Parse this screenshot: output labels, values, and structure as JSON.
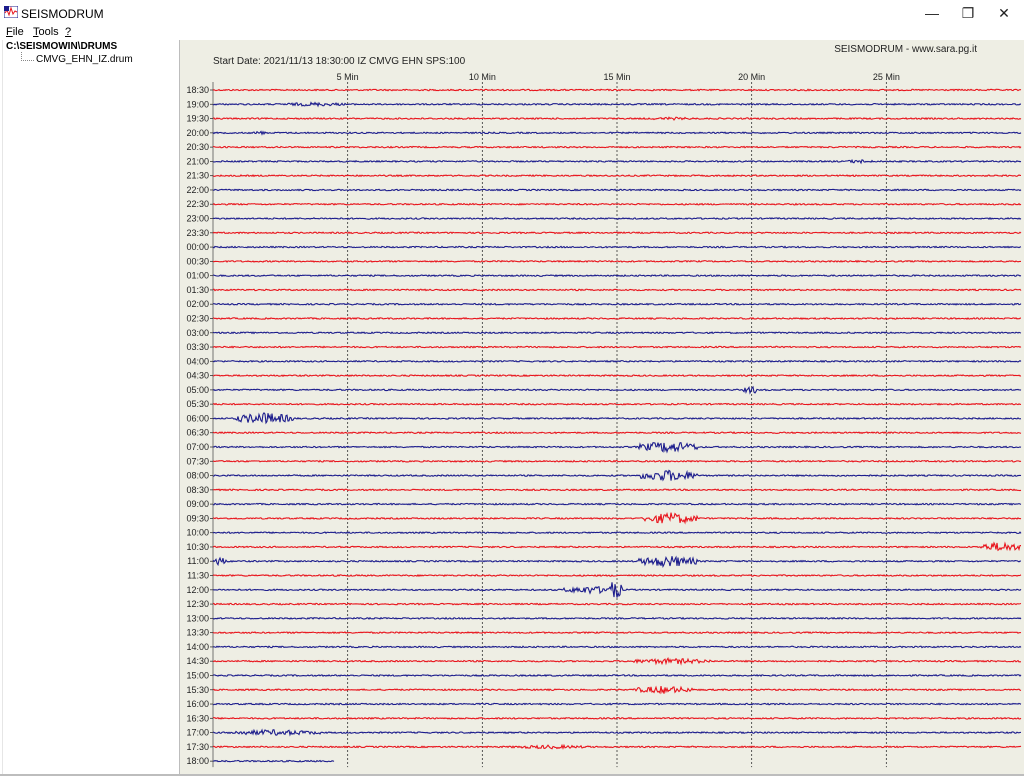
{
  "window": {
    "title": "SEISMODRUM",
    "minimize_glyph": "—",
    "restore_glyph": "❐",
    "close_glyph": "✕"
  },
  "menu": {
    "items": [
      {
        "label": "File"
      },
      {
        "label": "Tools"
      },
      {
        "label": "?"
      }
    ]
  },
  "tree": {
    "root": "C:\\SEISMOWIN\\DRUMS",
    "file": "CMVG_EHN_IZ.drum"
  },
  "drum": {
    "header_right": "SEISMODRUM - www.sara.pg.it",
    "start_info": "Start Date: 2021/11/13 18:30:00 IZ CMVG EHN SPS:100",
    "colors": {
      "red": "#e8141c",
      "blue": "#1c1c8c"
    },
    "minute_ticks": [
      {
        "minute": 5,
        "label": "5 Min"
      },
      {
        "minute": 10,
        "label": "10 Min"
      },
      {
        "minute": 15,
        "label": "15 Min"
      },
      {
        "minute": 20,
        "label": "20 Min"
      },
      {
        "minute": 25,
        "label": "25 Min"
      }
    ],
    "row_labels": [
      "18:30",
      "19:00",
      "19:30",
      "20:00",
      "20:30",
      "21:00",
      "21:30",
      "22:00",
      "22:30",
      "23:00",
      "23:30",
      "00:00",
      "00:30",
      "01:00",
      "01:30",
      "02:00",
      "02:30",
      "03:00",
      "03:30",
      "04:00",
      "04:30",
      "05:00",
      "05:30",
      "06:00",
      "06:30",
      "07:00",
      "07:30",
      "08:00",
      "08:30",
      "09:00",
      "09:30",
      "10:00",
      "10:30",
      "11:00",
      "11:30",
      "12:00",
      "12:30",
      "13:00",
      "13:30",
      "14:00",
      "14:30",
      "15:00",
      "15:30",
      "16:00",
      "16:30",
      "17:00",
      "17:30",
      "18:00"
    ],
    "events": [
      {
        "row": 1,
        "start": 2.5,
        "end": 5.0,
        "amp": 2
      },
      {
        "row": 2,
        "start": 16.0,
        "end": 18.0,
        "amp": 1.5
      },
      {
        "row": 3,
        "start": 1.5,
        "end": 2.0,
        "amp": 2
      },
      {
        "row": 5,
        "start": 23.5,
        "end": 24.5,
        "amp": 2
      },
      {
        "row": 21,
        "start": 19.7,
        "end": 20.3,
        "amp": 4
      },
      {
        "row": 23,
        "start": 0.8,
        "end": 3.0,
        "amp": 6
      },
      {
        "row": 25,
        "start": 15.8,
        "end": 18.0,
        "amp": 6
      },
      {
        "row": 27,
        "start": 15.8,
        "end": 18.0,
        "amp": 6
      },
      {
        "row": 30,
        "start": 16.0,
        "end": 18.0,
        "amp": 6
      },
      {
        "row": 32,
        "start": 28.5,
        "end": 30.0,
        "amp": 5
      },
      {
        "row": 33,
        "start": 0.0,
        "end": 0.5,
        "amp": 5
      },
      {
        "row": 33,
        "start": 15.8,
        "end": 18.0,
        "amp": 6
      },
      {
        "row": 35,
        "start": 13.0,
        "end": 15.0,
        "amp": 4
      },
      {
        "row": 35,
        "start": 14.6,
        "end": 15.2,
        "amp": 10
      },
      {
        "row": 40,
        "start": 15.5,
        "end": 18.5,
        "amp": 3
      },
      {
        "row": 42,
        "start": 15.6,
        "end": 17.8,
        "amp": 4
      },
      {
        "row": 45,
        "start": 0.5,
        "end": 4.0,
        "amp": 3
      },
      {
        "row": 46,
        "start": 11.0,
        "end": 14.0,
        "amp": 2
      }
    ]
  }
}
